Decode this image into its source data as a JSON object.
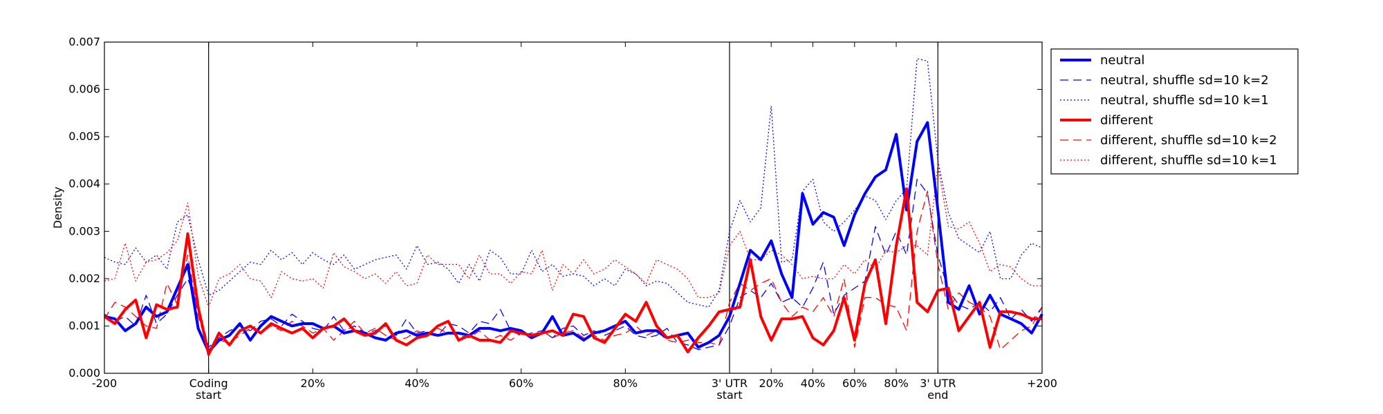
{
  "chart_data": {
    "type": "line",
    "xlabel": "",
    "ylabel": "Density",
    "ylim": [
      0,
      0.007
    ],
    "yticks": [
      "0.000",
      "0.001",
      "0.002",
      "0.003",
      "0.004",
      "0.005",
      "0.006",
      "0.007"
    ],
    "segment_bins": {
      "upstream": 10,
      "coding": 50,
      "utr": 20,
      "downstream": 10
    },
    "xtick_labels": [
      {
        "bin": 0,
        "l1": "-200",
        "l2": ""
      },
      {
        "bin": 10,
        "l1": "Coding",
        "l2": "start"
      },
      {
        "bin": 20,
        "l1": "20%",
        "l2": ""
      },
      {
        "bin": 30,
        "l1": "40%",
        "l2": ""
      },
      {
        "bin": 40,
        "l1": "60%",
        "l2": ""
      },
      {
        "bin": 50,
        "l1": "80%",
        "l2": ""
      },
      {
        "bin": 60,
        "l1": "3' UTR",
        "l2": "start"
      },
      {
        "bin": 64,
        "l1": "20%",
        "l2": ""
      },
      {
        "bin": 68,
        "l1": "40%",
        "l2": ""
      },
      {
        "bin": 72,
        "l1": "60%",
        "l2": ""
      },
      {
        "bin": 76,
        "l1": "80%",
        "l2": ""
      },
      {
        "bin": 80,
        "l1": "3' UTR",
        "l2": "end"
      },
      {
        "bin": 90,
        "l1": "+200",
        "l2": ""
      }
    ],
    "boundaries": [
      10,
      60,
      80
    ],
    "grid": false,
    "legend_position": "outside-top-right",
    "series": [
      {
        "name": "neutral",
        "color": "#0000ff",
        "style": "solid",
        "width": 4,
        "values": [
          0.0012,
          0.00115,
          0.0009,
          0.00105,
          0.0014,
          0.0012,
          0.0013,
          0.0018,
          0.0023,
          0.00095,
          0.00045,
          0.0007,
          0.0008,
          0.00105,
          0.0007,
          0.001,
          0.0012,
          0.0011,
          0.001,
          0.00105,
          0.00105,
          0.00095,
          0.001,
          0.00085,
          0.0009,
          0.00085,
          0.00075,
          0.0007,
          0.00085,
          0.0009,
          0.0008,
          0.00085,
          0.0008,
          0.00085,
          0.00085,
          0.0008,
          0.00095,
          0.00095,
          0.0009,
          0.00095,
          0.0009,
          0.00075,
          0.00085,
          0.0012,
          0.0008,
          0.00085,
          0.0007,
          0.00085,
          0.0009,
          0.001,
          0.0011,
          0.00085,
          0.0009,
          0.0009,
          0.00075,
          0.0008,
          0.00085,
          0.00055,
          0.00065,
          0.0008,
          0.0012,
          0.0019,
          0.0026,
          0.0024,
          0.0028,
          0.0021,
          0.0016,
          0.0038,
          0.00315,
          0.0034,
          0.0033,
          0.0027,
          0.00335,
          0.0038,
          0.00415,
          0.0043,
          0.00505,
          0.00345,
          0.0049,
          0.0053,
          0.00345,
          0.0015,
          0.00135,
          0.00185,
          0.00125,
          0.00165,
          0.00125,
          0.00115,
          0.00105,
          0.00085,
          0.00125
        ]
      },
      {
        "name": "neutral, shuffle sd=10 k=2",
        "color": "#0000ff",
        "style": "dashed",
        "width": 1.3,
        "values": [
          0.00125,
          0.0011,
          0.0012,
          0.001,
          0.00165,
          0.00105,
          0.00125,
          0.00165,
          0.002,
          0.0014,
          0.00055,
          0.00075,
          0.0009,
          0.001,
          0.0009,
          0.0011,
          0.00115,
          0.001,
          0.00125,
          0.0011,
          0.00095,
          0.0009,
          0.0012,
          0.0009,
          0.001,
          0.00085,
          0.0009,
          0.001,
          0.0008,
          0.00115,
          0.00085,
          0.0009,
          0.0008,
          0.00105,
          0.001,
          0.00085,
          0.0011,
          0.00105,
          0.00135,
          0.0009,
          0.0008,
          0.00085,
          0.0009,
          0.00075,
          0.00095,
          0.001,
          0.0008,
          0.0009,
          0.0008,
          0.0009,
          0.001,
          0.0008,
          0.00075,
          0.0008,
          0.00095,
          0.00065,
          0.0006,
          0.0005,
          0.00055,
          0.0006,
          0.001,
          0.0016,
          0.00175,
          0.0016,
          0.0019,
          0.0015,
          0.0016,
          0.0014,
          0.0018,
          0.00235,
          0.00125,
          0.00165,
          0.0018,
          0.00195,
          0.0031,
          0.0025,
          0.003,
          0.0025,
          0.0041,
          0.0038,
          0.0025,
          0.00175,
          0.00145,
          0.00135,
          0.0015,
          0.0013,
          0.0016,
          0.00115,
          0.00135,
          0.0011,
          0.0014
        ]
      },
      {
        "name": "neutral, shuffle sd=10 k=1",
        "color": "#0000ff",
        "style": "dotted",
        "width": 1.3,
        "values": [
          0.00245,
          0.00235,
          0.0023,
          0.00265,
          0.00235,
          0.0025,
          0.0022,
          0.0032,
          0.00335,
          0.0024,
          0.00165,
          0.00175,
          0.00195,
          0.00215,
          0.00235,
          0.0023,
          0.0026,
          0.0024,
          0.00255,
          0.0023,
          0.00255,
          0.0024,
          0.0023,
          0.0025,
          0.0022,
          0.0023,
          0.0024,
          0.00245,
          0.0025,
          0.0022,
          0.0027,
          0.0023,
          0.00235,
          0.0022,
          0.0019,
          0.0023,
          0.00195,
          0.0026,
          0.00245,
          0.0021,
          0.0021,
          0.0026,
          0.00215,
          0.0023,
          0.00205,
          0.0021,
          0.00205,
          0.00185,
          0.002,
          0.00185,
          0.0022,
          0.0021,
          0.00185,
          0.00195,
          0.0019,
          0.0017,
          0.0015,
          0.00145,
          0.0014,
          0.00175,
          0.003,
          0.00365,
          0.0032,
          0.0035,
          0.00565,
          0.00235,
          0.0024,
          0.00385,
          0.0041,
          0.0032,
          0.003,
          0.0032,
          0.00345,
          0.00375,
          0.00365,
          0.00325,
          0.00365,
          0.0039,
          0.00665,
          0.0066,
          0.0045,
          0.0034,
          0.00285,
          0.0027,
          0.00255,
          0.003,
          0.002,
          0.002,
          0.0025,
          0.00275,
          0.00265
        ]
      },
      {
        "name": "different",
        "color": "#ff0000",
        "style": "solid",
        "width": 4,
        "values": [
          0.0012,
          0.00105,
          0.00135,
          0.00155,
          0.00075,
          0.00145,
          0.00135,
          0.0014,
          0.00295,
          0.0014,
          0.0004,
          0.00085,
          0.0006,
          0.0009,
          0.001,
          0.00085,
          0.00105,
          0.00095,
          0.00085,
          0.00095,
          0.00075,
          0.00095,
          0.001,
          0.00115,
          0.0009,
          0.0008,
          0.00085,
          0.00105,
          0.0007,
          0.0006,
          0.00075,
          0.0008,
          0.001,
          0.0011,
          0.0007,
          0.0008,
          0.0007,
          0.0007,
          0.00065,
          0.0009,
          0.00085,
          0.0008,
          0.00085,
          0.0009,
          0.0008,
          0.00125,
          0.0012,
          0.00075,
          0.00065,
          0.00095,
          0.00125,
          0.0011,
          0.0015,
          0.001,
          0.00075,
          0.0008,
          0.00045,
          0.00075,
          0.001,
          0.0013,
          0.00135,
          0.0014,
          0.0024,
          0.0012,
          0.0007,
          0.00115,
          0.00115,
          0.0012,
          0.00075,
          0.0006,
          0.0009,
          0.0016,
          0.0007,
          0.0019,
          0.0024,
          0.00105,
          0.0027,
          0.0039,
          0.0015,
          0.0013,
          0.00175,
          0.0018,
          0.0009,
          0.0012,
          0.0015,
          0.00055,
          0.0013,
          0.0013,
          0.00125,
          0.00115,
          0.00115
        ]
      },
      {
        "name": "different, shuffle sd=10 k=2",
        "color": "#ff0000",
        "style": "dashed",
        "width": 1.3,
        "values": [
          0.00115,
          0.0015,
          0.0014,
          0.0012,
          0.001,
          0.00095,
          0.0019,
          0.00145,
          0.0025,
          0.0012,
          0.0005,
          0.0007,
          0.00065,
          0.0008,
          0.00095,
          0.00085,
          0.001,
          0.0009,
          0.0011,
          0.001,
          0.00085,
          0.00095,
          0.0007,
          0.0009,
          0.0011,
          0.00085,
          0.00095,
          0.0008,
          0.0007,
          0.00075,
          0.0009,
          0.0008,
          0.00095,
          0.00085,
          0.0008,
          0.00075,
          0.0009,
          0.0007,
          0.0008,
          0.0007,
          0.00085,
          0.0008,
          0.0009,
          0.00075,
          0.00085,
          0.0009,
          0.00075,
          0.0008,
          0.0007,
          0.0008,
          0.00085,
          0.001,
          0.0008,
          0.0009,
          0.0007,
          0.00065,
          0.0007,
          0.00065,
          0.00065,
          0.0006,
          0.0015,
          0.0019,
          0.00175,
          0.0019,
          0.002,
          0.0015,
          0.0012,
          0.0014,
          0.0013,
          0.0016,
          0.0012,
          0.002,
          0.00055,
          0.0016,
          0.0016,
          0.00145,
          0.0014,
          0.0009,
          0.003,
          0.00385,
          0.0023,
          0.00135,
          0.0017,
          0.0015,
          0.0014,
          0.0012,
          0.0005,
          0.0007,
          0.0009,
          0.001,
          0.0014
        ]
      },
      {
        "name": "different, shuffle sd=10 k=1",
        "color": "#ff0000",
        "style": "dotted",
        "width": 1.3,
        "values": [
          0.00195,
          0.002,
          0.00275,
          0.00195,
          0.00235,
          0.0024,
          0.00255,
          0.0028,
          0.0036,
          0.00205,
          0.0014,
          0.002,
          0.0021,
          0.0023,
          0.002,
          0.00195,
          0.0016,
          0.00215,
          0.002,
          0.00195,
          0.002,
          0.0018,
          0.00255,
          0.00225,
          0.00215,
          0.002,
          0.0021,
          0.0019,
          0.00215,
          0.00185,
          0.0019,
          0.0025,
          0.0023,
          0.0023,
          0.0023,
          0.002,
          0.0025,
          0.0021,
          0.0021,
          0.0019,
          0.00215,
          0.0021,
          0.0026,
          0.00175,
          0.0023,
          0.0021,
          0.0024,
          0.0021,
          0.0022,
          0.0024,
          0.00225,
          0.0021,
          0.0019,
          0.0024,
          0.0023,
          0.0022,
          0.002,
          0.0016,
          0.0016,
          0.0017,
          0.0027,
          0.003,
          0.0024,
          0.0024,
          0.0026,
          0.0025,
          0.0023,
          0.002,
          0.00205,
          0.002,
          0.002,
          0.0023,
          0.0021,
          0.0024,
          0.0022,
          0.0026,
          0.00255,
          0.0027,
          0.0027,
          0.0025,
          0.0044,
          0.0031,
          0.00305,
          0.0032,
          0.00275,
          0.00215,
          0.0023,
          0.00225,
          0.002,
          0.00185,
          0.00185
        ]
      }
    ]
  }
}
